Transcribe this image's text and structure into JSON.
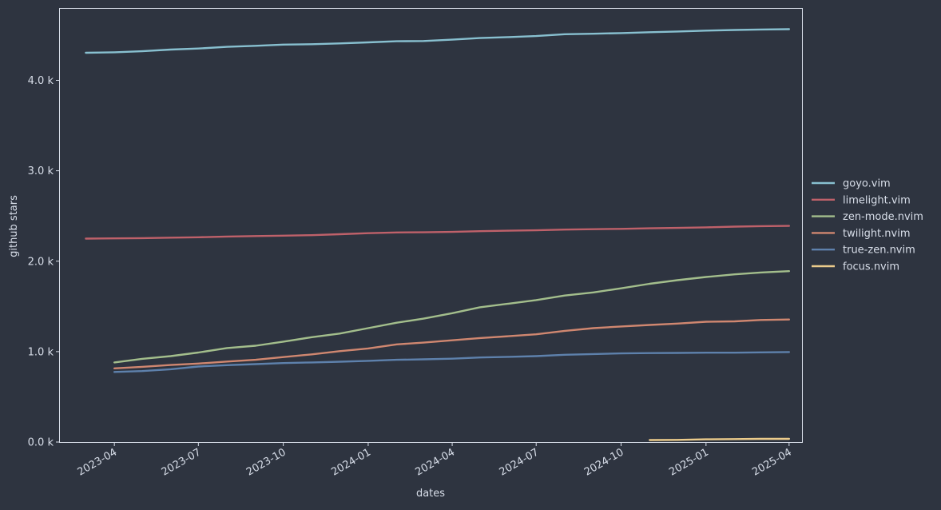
{
  "chart_data": {
    "type": "line",
    "xlabel": "dates",
    "ylabel": "github stars",
    "x_domain": [
      "2023-02-01",
      "2025-04-15"
    ],
    "ylim": [
      0,
      4800
    ],
    "x_ticks": [
      {
        "date": "2023-04-01",
        "label": "2023-04"
      },
      {
        "date": "2023-07-01",
        "label": "2023-07"
      },
      {
        "date": "2023-10-01",
        "label": "2023-10"
      },
      {
        "date": "2024-01-01",
        "label": "2024-01"
      },
      {
        "date": "2024-04-01",
        "label": "2024-04"
      },
      {
        "date": "2024-07-01",
        "label": "2024-07"
      },
      {
        "date": "2024-10-01",
        "label": "2024-10"
      },
      {
        "date": "2025-01-01",
        "label": "2025-01"
      },
      {
        "date": "2025-04-01",
        "label": "2025-04"
      }
    ],
    "y_ticks": [
      {
        "value": 0,
        "label": "0.0 k"
      },
      {
        "value": 1000,
        "label": "1.0 k"
      },
      {
        "value": 2000,
        "label": "2.0 k"
      },
      {
        "value": 3000,
        "label": "3.0 k"
      },
      {
        "value": 4000,
        "label": "4.0 k"
      }
    ],
    "legend_position": "right",
    "grid": false,
    "series": [
      {
        "name": "goyo.vim",
        "color": "#88c0d0",
        "points": [
          [
            "2023-03-01",
            4305
          ],
          [
            "2023-04-01",
            4310
          ],
          [
            "2023-05-01",
            4322
          ],
          [
            "2023-06-01",
            4340
          ],
          [
            "2023-07-01",
            4352
          ],
          [
            "2023-08-01",
            4370
          ],
          [
            "2023-09-01",
            4382
          ],
          [
            "2023-10-01",
            4395
          ],
          [
            "2023-11-01",
            4400
          ],
          [
            "2023-12-01",
            4408
          ],
          [
            "2024-01-01",
            4420
          ],
          [
            "2024-02-01",
            4432
          ],
          [
            "2024-03-01",
            4435
          ],
          [
            "2024-04-01",
            4450
          ],
          [
            "2024-05-01",
            4468
          ],
          [
            "2024-06-01",
            4478
          ],
          [
            "2024-07-01",
            4490
          ],
          [
            "2024-08-01",
            4510
          ],
          [
            "2024-09-01",
            4515
          ],
          [
            "2024-10-01",
            4522
          ],
          [
            "2024-11-01",
            4532
          ],
          [
            "2024-12-01",
            4540
          ],
          [
            "2025-01-01",
            4550
          ],
          [
            "2025-02-01",
            4557
          ],
          [
            "2025-03-01",
            4562
          ],
          [
            "2025-04-01",
            4566
          ]
        ]
      },
      {
        "name": "limelight.vim",
        "color": "#bf616a",
        "points": [
          [
            "2023-03-01",
            2250
          ],
          [
            "2023-04-01",
            2252
          ],
          [
            "2023-05-01",
            2255
          ],
          [
            "2023-06-01",
            2260
          ],
          [
            "2023-07-01",
            2265
          ],
          [
            "2023-08-01",
            2273
          ],
          [
            "2023-09-01",
            2278
          ],
          [
            "2023-10-01",
            2282
          ],
          [
            "2023-11-01",
            2288
          ],
          [
            "2023-12-01",
            2298
          ],
          [
            "2024-01-01",
            2310
          ],
          [
            "2024-02-01",
            2318
          ],
          [
            "2024-03-01",
            2320
          ],
          [
            "2024-04-01",
            2324
          ],
          [
            "2024-05-01",
            2332
          ],
          [
            "2024-06-01",
            2337
          ],
          [
            "2024-07-01",
            2342
          ],
          [
            "2024-08-01",
            2350
          ],
          [
            "2024-09-01",
            2354
          ],
          [
            "2024-10-01",
            2358
          ],
          [
            "2024-11-01",
            2364
          ],
          [
            "2024-12-01",
            2368
          ],
          [
            "2025-01-01",
            2374
          ],
          [
            "2025-02-01",
            2382
          ],
          [
            "2025-03-01",
            2388
          ],
          [
            "2025-04-01",
            2390
          ]
        ]
      },
      {
        "name": "zen-mode.nvim",
        "color": "#a3be8c",
        "points": [
          [
            "2023-04-01",
            880
          ],
          [
            "2023-05-01",
            920
          ],
          [
            "2023-06-01",
            950
          ],
          [
            "2023-07-01",
            990
          ],
          [
            "2023-08-01",
            1040
          ],
          [
            "2023-09-01",
            1065
          ],
          [
            "2023-10-01",
            1110
          ],
          [
            "2023-11-01",
            1160
          ],
          [
            "2023-12-01",
            1200
          ],
          [
            "2024-01-01",
            1260
          ],
          [
            "2024-02-01",
            1320
          ],
          [
            "2024-03-01",
            1365
          ],
          [
            "2024-04-01",
            1425
          ],
          [
            "2024-05-01",
            1490
          ],
          [
            "2024-06-01",
            1530
          ],
          [
            "2024-07-01",
            1570
          ],
          [
            "2024-08-01",
            1620
          ],
          [
            "2024-09-01",
            1655
          ],
          [
            "2024-10-01",
            1700
          ],
          [
            "2024-11-01",
            1750
          ],
          [
            "2024-12-01",
            1790
          ],
          [
            "2025-01-01",
            1825
          ],
          [
            "2025-02-01",
            1855
          ],
          [
            "2025-03-01",
            1875
          ],
          [
            "2025-04-01",
            1890
          ]
        ]
      },
      {
        "name": "twilight.nvim",
        "color": "#d08770",
        "points": [
          [
            "2023-04-01",
            815
          ],
          [
            "2023-05-01",
            832
          ],
          [
            "2023-06-01",
            852
          ],
          [
            "2023-07-01",
            868
          ],
          [
            "2023-08-01",
            890
          ],
          [
            "2023-09-01",
            910
          ],
          [
            "2023-10-01",
            940
          ],
          [
            "2023-11-01",
            970
          ],
          [
            "2023-12-01",
            1005
          ],
          [
            "2024-01-01",
            1035
          ],
          [
            "2024-02-01",
            1080
          ],
          [
            "2024-03-01",
            1100
          ],
          [
            "2024-04-01",
            1125
          ],
          [
            "2024-05-01",
            1150
          ],
          [
            "2024-06-01",
            1170
          ],
          [
            "2024-07-01",
            1192
          ],
          [
            "2024-08-01",
            1230
          ],
          [
            "2024-09-01",
            1260
          ],
          [
            "2024-10-01",
            1278
          ],
          [
            "2024-11-01",
            1295
          ],
          [
            "2024-12-01",
            1310
          ],
          [
            "2025-01-01",
            1330
          ],
          [
            "2025-02-01",
            1335
          ],
          [
            "2025-03-01",
            1350
          ],
          [
            "2025-04-01",
            1355
          ]
        ]
      },
      {
        "name": "true-zen.nvim",
        "color": "#5e81ac",
        "points": [
          [
            "2023-04-01",
            775
          ],
          [
            "2023-05-01",
            785
          ],
          [
            "2023-06-01",
            805
          ],
          [
            "2023-07-01",
            835
          ],
          [
            "2023-08-01",
            850
          ],
          [
            "2023-09-01",
            862
          ],
          [
            "2023-10-01",
            873
          ],
          [
            "2023-11-01",
            880
          ],
          [
            "2023-12-01",
            888
          ],
          [
            "2024-01-01",
            898
          ],
          [
            "2024-02-01",
            910
          ],
          [
            "2024-03-01",
            915
          ],
          [
            "2024-04-01",
            922
          ],
          [
            "2024-05-01",
            935
          ],
          [
            "2024-06-01",
            942
          ],
          [
            "2024-07-01",
            950
          ],
          [
            "2024-08-01",
            965
          ],
          [
            "2024-09-01",
            973
          ],
          [
            "2024-10-01",
            980
          ],
          [
            "2024-11-01",
            984
          ],
          [
            "2024-12-01",
            986
          ],
          [
            "2025-01-01",
            988
          ],
          [
            "2025-02-01",
            988
          ],
          [
            "2025-03-01",
            992
          ],
          [
            "2025-04-01",
            995
          ]
        ]
      },
      {
        "name": "focus.nvim",
        "color": "#ebcb8b",
        "points": [
          [
            "2024-11-01",
            22
          ],
          [
            "2024-12-01",
            24
          ],
          [
            "2025-01-01",
            30
          ],
          [
            "2025-02-01",
            33
          ],
          [
            "2025-03-01",
            35
          ],
          [
            "2025-04-01",
            35
          ]
        ]
      }
    ]
  }
}
